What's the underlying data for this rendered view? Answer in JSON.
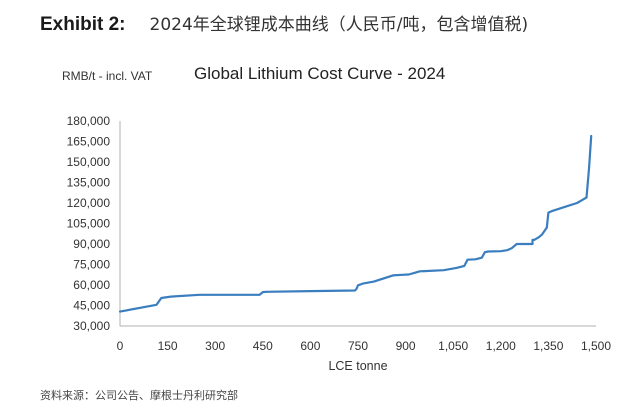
{
  "header": {
    "exhibit_label": "Exhibit 2:",
    "exhibit_title": "2024年全球锂成本曲线（人民币/吨，包含增值税)"
  },
  "chart_data": {
    "type": "line",
    "title": "Global Lithium Cost Curve - 2024",
    "unit_label": "RMB/t - incl. VAT",
    "xlabel": "LCE tonne",
    "ylabel": "RMB/t - incl. VAT",
    "xlim": [
      0,
      1500
    ],
    "ylim": [
      30000,
      180000
    ],
    "x_ticks": [
      0,
      150,
      300,
      450,
      600,
      750,
      900,
      1050,
      1200,
      1350,
      1500
    ],
    "x_tick_labels": [
      "0",
      "150",
      "300",
      "450",
      "600",
      "750",
      "900",
      "1,050",
      "1,200",
      "1,350",
      "1,500"
    ],
    "y_ticks": [
      30000,
      45000,
      60000,
      75000,
      90000,
      105000,
      120000,
      135000,
      150000,
      165000,
      180000
    ],
    "y_tick_labels": [
      "30,000",
      "45,000",
      "60,000",
      "75,000",
      "90,000",
      "105,000",
      "120,000",
      "135,000",
      "150,000",
      "165,000",
      "180,000"
    ],
    "grid": false,
    "line_color": "#3a7ebf",
    "series": [
      {
        "name": "Global Lithium Cost Curve - 2024",
        "x": [
          0,
          115,
          130,
          160,
          250,
          440,
          450,
          460,
          600,
          740,
          745,
          750,
          765,
          800,
          860,
          890,
          910,
          930,
          945,
          960,
          1020,
          1060,
          1085,
          1095,
          1120,
          1140,
          1150,
          1160,
          1200,
          1220,
          1235,
          1250,
          1300,
          1300,
          1305,
          1320,
          1330,
          1345,
          1350,
          1360,
          1400,
          1440,
          1455,
          1470,
          1478,
          1485
        ],
        "y": [
          40500,
          45500,
          50500,
          51500,
          52800,
          52800,
          54800,
          55000,
          55500,
          56000,
          57000,
          59800,
          61000,
          62500,
          67000,
          67500,
          67700,
          69000,
          70000,
          70200,
          70800,
          72500,
          74000,
          78500,
          78800,
          80000,
          84000,
          84500,
          84700,
          85500,
          87000,
          90000,
          90000,
          93000,
          93000,
          95000,
          97000,
          102000,
          113000,
          114000,
          117000,
          120000,
          122000,
          124000,
          145000,
          169000
        ]
      }
    ]
  },
  "source": "资料来源：公司公告、摩根士丹利研究部"
}
